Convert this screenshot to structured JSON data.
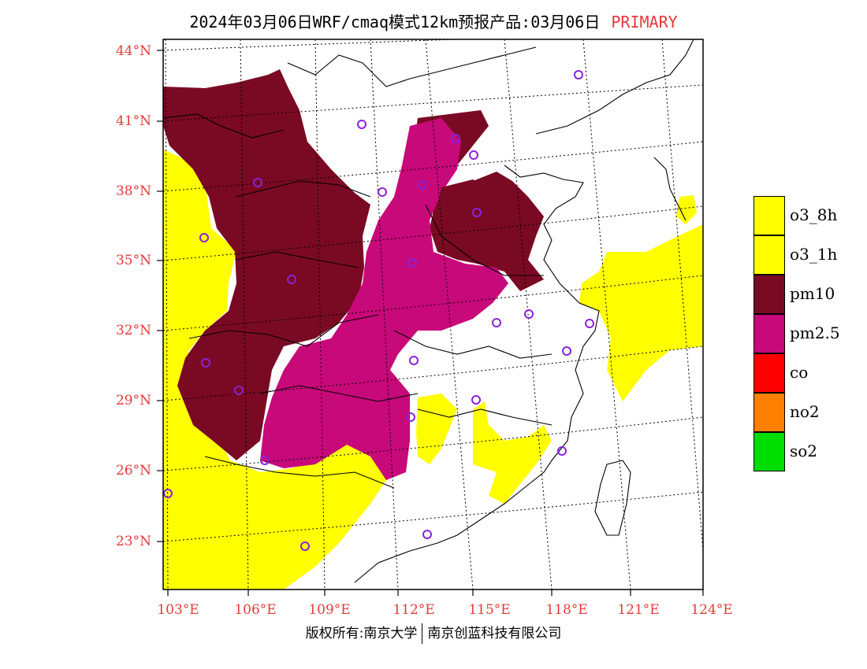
{
  "header": {
    "title": "2024年03月06日WRF/cmaq模式12km预报产品:03月06日",
    "tag": "PRIMARY"
  },
  "axes": {
    "lat_labels": [
      "44°N",
      "41°N",
      "38°N",
      "35°N",
      "32°N",
      "29°N",
      "26°N",
      "23°N"
    ],
    "lon_labels": [
      "103°E",
      "106°E",
      "109°E",
      "112°E",
      "115°E",
      "118°E",
      "121°E",
      "124°E"
    ]
  },
  "legend": {
    "items": [
      {
        "label": "o3_8h",
        "color": "#ffff00"
      },
      {
        "label": "o3_1h",
        "color": "#ffff00"
      },
      {
        "label": "pm10",
        "color": "#7a0a23"
      },
      {
        "label": "pm2.5",
        "color": "#c8097a"
      },
      {
        "label": "co",
        "color": "#ff0000"
      },
      {
        "label": "no2",
        "color": "#ff8000"
      },
      {
        "label": "so2",
        "color": "#00dd00"
      }
    ]
  },
  "footer": {
    "left": "版权所有:南京大学",
    "right": "南京创蓝科技有限公司"
  }
}
